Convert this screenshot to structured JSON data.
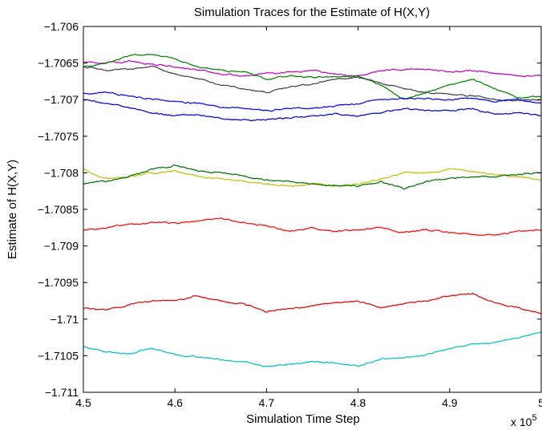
{
  "chart_data": {
    "type": "line",
    "title": "Simulation Traces for the Estimate of H(X,Y)",
    "xlabel": "Simulation Time Step",
    "ylabel": "Estimate of H(X,Y)",
    "x_multiplier_label": "x 10",
    "x_multiplier_exponent": "5",
    "xlim": [
      4.5,
      5.0
    ],
    "ylim": [
      -1.711,
      -1.706
    ],
    "x_ticks": [
      4.5,
      4.6,
      4.7,
      4.8,
      4.9,
      5.0
    ],
    "x_tick_labels": [
      "4.5",
      "4.6",
      "4.7",
      "4.8",
      "4.9",
      "5"
    ],
    "y_ticks": [
      -1.706,
      -1.7065,
      -1.707,
      -1.7075,
      -1.708,
      -1.7085,
      -1.709,
      -1.7095,
      -1.71,
      -1.7105,
      -1.711
    ],
    "y_tick_labels": [
      "−1.706",
      "−1.7065",
      "−1.707",
      "−1.7075",
      "−1.708",
      "−1.7085",
      "−1.709",
      "−1.7095",
      "−1.71",
      "−1.7105",
      "−1.711"
    ],
    "grid": false,
    "legend": "none",
    "x": [
      4.5,
      4.525,
      4.55,
      4.575,
      4.6,
      4.625,
      4.65,
      4.675,
      4.7,
      4.725,
      4.75,
      4.775,
      4.8,
      4.825,
      4.85,
      4.875,
      4.9,
      4.925,
      4.95,
      4.975,
      5.0
    ],
    "series": [
      {
        "color": "#bf00bf",
        "values": [
          -1.70648,
          -1.7065,
          -1.70648,
          -1.70652,
          -1.70655,
          -1.7066,
          -1.70665,
          -1.70668,
          -1.70665,
          -1.70662,
          -1.7066,
          -1.70665,
          -1.70668,
          -1.7066,
          -1.70658,
          -1.70658,
          -1.70662,
          -1.7066,
          -1.70664,
          -1.70668,
          -1.70667
        ]
      },
      {
        "color": "#008000",
        "values": [
          -1.70655,
          -1.7065,
          -1.7064,
          -1.70638,
          -1.70645,
          -1.70655,
          -1.7066,
          -1.70662,
          -1.70672,
          -1.70668,
          -1.7067,
          -1.70668,
          -1.70668,
          -1.7068,
          -1.707,
          -1.7069,
          -1.7068,
          -1.70672,
          -1.70685,
          -1.70698,
          -1.70695
        ]
      },
      {
        "color": "#404040",
        "values": [
          -1.70655,
          -1.7066,
          -1.70658,
          -1.70655,
          -1.70665,
          -1.7067,
          -1.7068,
          -1.70685,
          -1.7069,
          -1.70682,
          -1.70678,
          -1.70672,
          -1.7067,
          -1.70678,
          -1.70685,
          -1.7069,
          -1.70692,
          -1.70695,
          -1.707,
          -1.70702,
          -1.707
        ]
      },
      {
        "color": "#0000ff",
        "values": [
          -1.70692,
          -1.7069,
          -1.70695,
          -1.707,
          -1.70702,
          -1.70705,
          -1.7071,
          -1.70712,
          -1.70715,
          -1.70712,
          -1.70712,
          -1.70708,
          -1.70705,
          -1.707,
          -1.70698,
          -1.70698,
          -1.707,
          -1.70698,
          -1.70702,
          -1.707,
          -1.70705
        ]
      },
      {
        "color": "#0000cd",
        "values": [
          -1.707,
          -1.70705,
          -1.70712,
          -1.70718,
          -1.70722,
          -1.7072,
          -1.70725,
          -1.70728,
          -1.70728,
          -1.70725,
          -1.70722,
          -1.7072,
          -1.70722,
          -1.70718,
          -1.70712,
          -1.70715,
          -1.70715,
          -1.70712,
          -1.7072,
          -1.70718,
          -1.70722
        ]
      },
      {
        "color": "#bfbf00",
        "values": [
          -1.70795,
          -1.70808,
          -1.70805,
          -1.708,
          -1.70798,
          -1.70805,
          -1.70808,
          -1.70812,
          -1.70815,
          -1.70818,
          -1.70815,
          -1.70818,
          -1.70815,
          -1.70808,
          -1.708,
          -1.708,
          -1.70795,
          -1.70798,
          -1.70802,
          -1.70805,
          -1.7081
        ]
      },
      {
        "color": "#007000",
        "values": [
          -1.70815,
          -1.70812,
          -1.70805,
          -1.70795,
          -1.7079,
          -1.70798,
          -1.708,
          -1.70805,
          -1.7081,
          -1.70812,
          -1.70815,
          -1.70818,
          -1.70818,
          -1.70812,
          -1.70822,
          -1.70812,
          -1.70808,
          -1.70805,
          -1.70805,
          -1.70802,
          -1.708
        ]
      },
      {
        "color": "#ff0000",
        "values": [
          -1.70878,
          -1.70875,
          -1.7087,
          -1.70868,
          -1.7087,
          -1.70865,
          -1.70862,
          -1.70868,
          -1.70872,
          -1.7088,
          -1.70875,
          -1.7088,
          -1.70878,
          -1.70875,
          -1.70882,
          -1.70878,
          -1.70882,
          -1.70885,
          -1.70885,
          -1.7088,
          -1.70878
        ]
      },
      {
        "color": "#e00000",
        "values": [
          -1.70985,
          -1.70988,
          -1.7098,
          -1.70975,
          -1.70975,
          -1.70968,
          -1.70975,
          -1.7098,
          -1.7099,
          -1.70985,
          -1.70982,
          -1.70978,
          -1.70975,
          -1.70985,
          -1.70978,
          -1.70975,
          -1.70968,
          -1.70965,
          -1.70978,
          -1.70985,
          -1.70992
        ]
      },
      {
        "color": "#00bfbf",
        "values": [
          -1.71038,
          -1.71045,
          -1.71048,
          -1.7104,
          -1.71048,
          -1.71052,
          -1.71055,
          -1.71058,
          -1.71065,
          -1.71062,
          -1.71058,
          -1.7106,
          -1.71065,
          -1.71055,
          -1.71052,
          -1.71048,
          -1.7104,
          -1.71035,
          -1.71032,
          -1.71025,
          -1.71018
        ]
      }
    ]
  }
}
